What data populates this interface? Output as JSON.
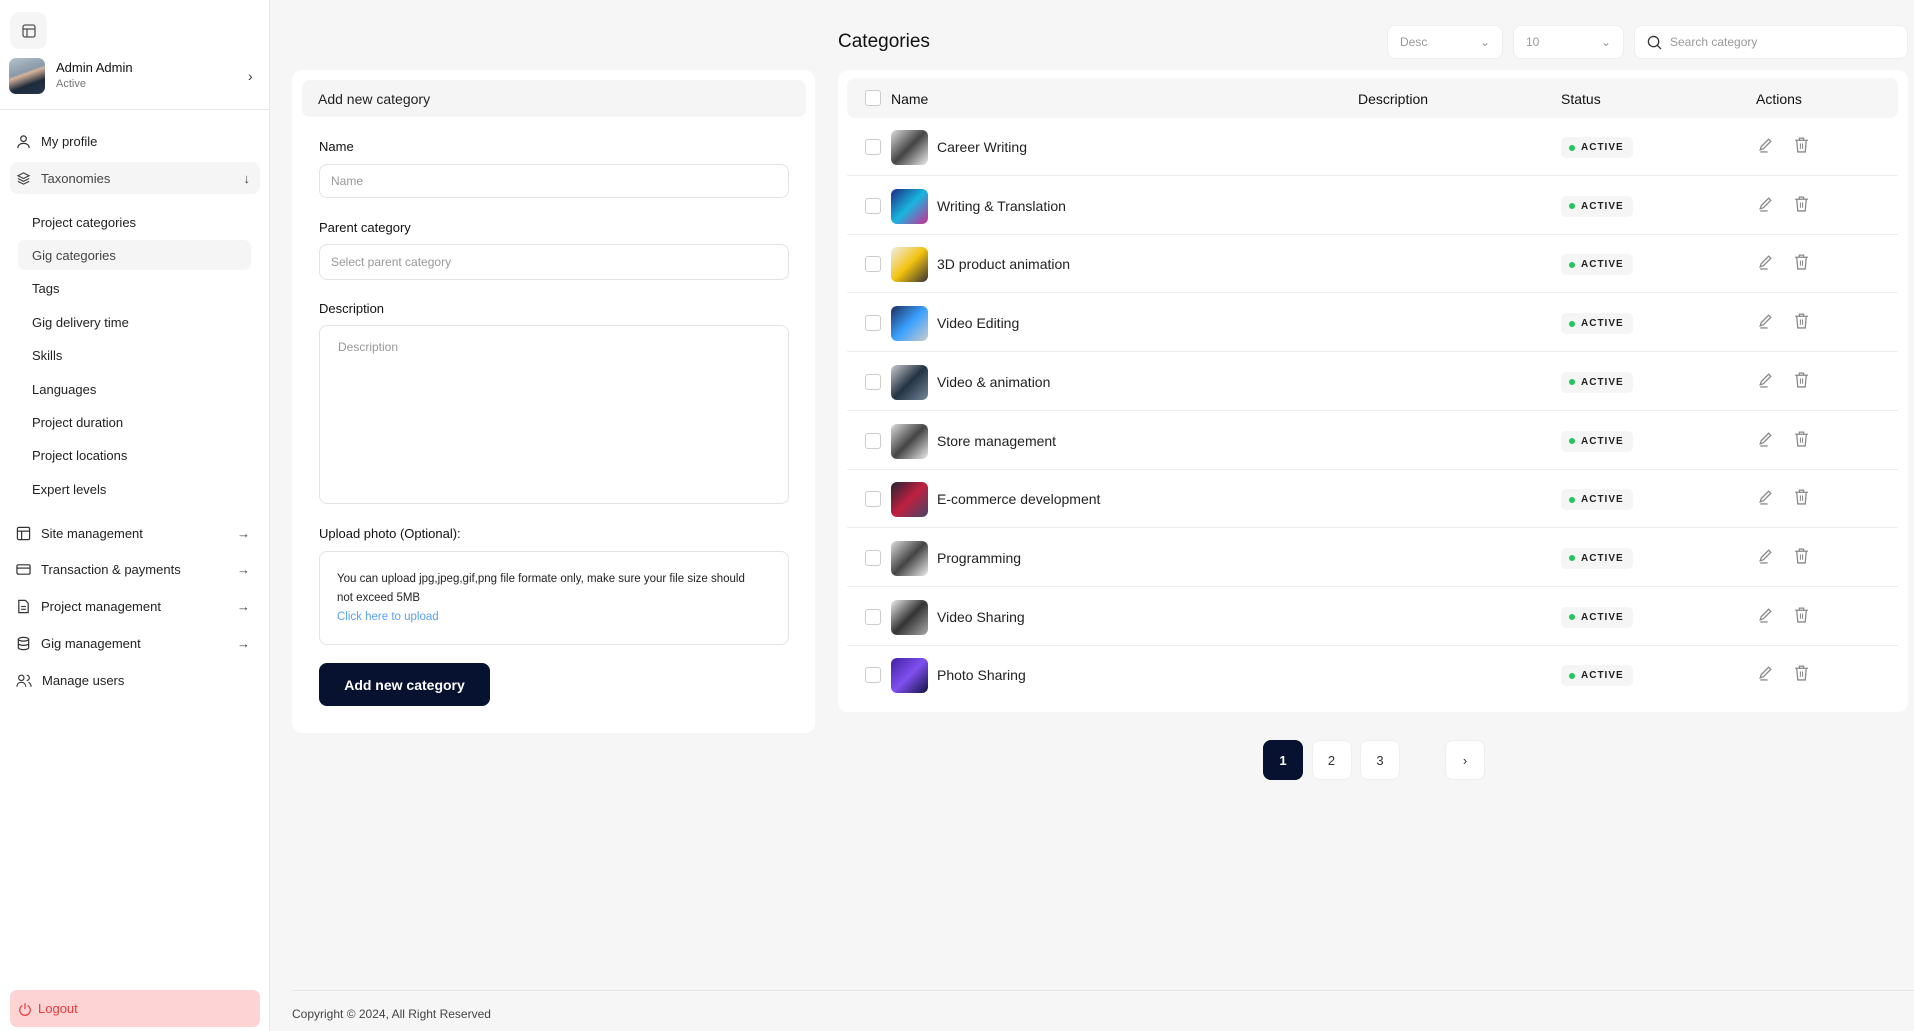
{
  "sidebar": {
    "profile": {
      "name": "Admin Admin",
      "status": "Active"
    },
    "my_profile": "My profile",
    "taxonomies": "Taxonomies",
    "sub_items": [
      "Project categories",
      "Gig categories",
      "Tags",
      "Gig delivery time",
      "Skills",
      "Languages",
      "Project duration",
      "Project locations",
      "Expert levels"
    ],
    "active_sub": "Gig categories",
    "sections": [
      {
        "label": "Site management",
        "icon": "layout-icon"
      },
      {
        "label": "Transaction & payments",
        "icon": "card-icon"
      },
      {
        "label": "Project management",
        "icon": "document-icon"
      },
      {
        "label": "Gig management",
        "icon": "database-icon"
      }
    ],
    "manage_users": "Manage users",
    "logout": "Logout"
  },
  "form": {
    "header": "Add new category",
    "name_label": "Name",
    "name_placeholder": "Name",
    "parent_label": "Parent category",
    "parent_placeholder": "Select parent category",
    "desc_label": "Description",
    "desc_placeholder": "Description",
    "upload_label": "Upload photo (Optional):",
    "upload_hint": "You can upload jpg,jpeg,gif,png file formate only, make sure your file size should not exceed 5MB",
    "upload_link": "Click here to upload",
    "submit": "Add new category"
  },
  "list": {
    "title": "Categories",
    "sort": "Desc",
    "per_page": "10",
    "search_placeholder": "Search category",
    "columns": [
      "Name",
      "Description",
      "Status",
      "Actions"
    ],
    "rows": [
      {
        "name": "Career Writing",
        "description": "",
        "status": "ACTIVE"
      },
      {
        "name": "Writing & Translation",
        "description": "",
        "status": "ACTIVE"
      },
      {
        "name": "3D product animation",
        "description": "",
        "status": "ACTIVE"
      },
      {
        "name": "Video Editing",
        "description": "",
        "status": "ACTIVE"
      },
      {
        "name": "Video & animation",
        "description": "",
        "status": "ACTIVE"
      },
      {
        "name": "Store management",
        "description": "",
        "status": "ACTIVE"
      },
      {
        "name": "E-commerce development",
        "description": "",
        "status": "ACTIVE"
      },
      {
        "name": "Programming",
        "description": "",
        "status": "ACTIVE"
      },
      {
        "name": "Video Sharing",
        "description": "",
        "status": "ACTIVE"
      },
      {
        "name": "Photo Sharing",
        "description": "",
        "status": "ACTIVE"
      }
    ],
    "pages": [
      "1",
      "2",
      "3"
    ],
    "current_page": "1"
  },
  "footer": {
    "copyright": "Copyright © 2024, All Right Reserved"
  },
  "colors": {
    "primary": "#06122f",
    "active_dot": "#22c55e",
    "logout_bg": "#fdd3d3",
    "link": "#5aa2f0"
  }
}
